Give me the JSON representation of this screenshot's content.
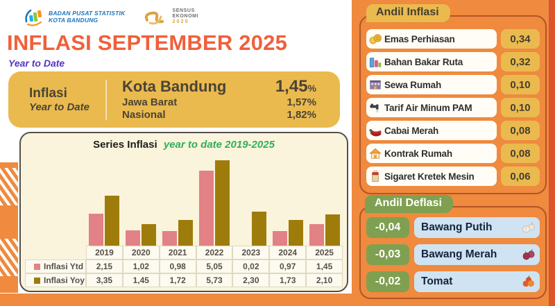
{
  "header": {
    "bps_line1": "BADAN PUSAT STATISTIK",
    "bps_line2": "KOTA BANDUNG",
    "sensus_line1": "SENSUS",
    "sensus_line2": "EKONOMI",
    "sensus_line3": "2025",
    "title": "INFLASI SEPTEMBER 2025",
    "subtitle": "Year to Date"
  },
  "summary_box": {
    "label_line1": "Inflasi",
    "label_line2": "Year to Date",
    "rows": [
      {
        "region": "Kota Bandung",
        "value": "1,45",
        "unit": "%"
      },
      {
        "region": "Jawa Barat",
        "value": "1,57",
        "unit": "%"
      },
      {
        "region": "Nasional",
        "value": "1,82",
        "unit": "%"
      }
    ]
  },
  "chart": {
    "title_main": "Series Inflasi",
    "title_accent": "year to date 2019-2025"
  },
  "chart_data": {
    "type": "bar",
    "title": "Series Inflasi year to date 2019-2025",
    "categories": [
      "2019",
      "2020",
      "2021",
      "2022",
      "2023",
      "2024",
      "2025"
    ],
    "series": [
      {
        "name": "Inflasi Ytd",
        "color": "#E28186",
        "values": [
          2.15,
          1.02,
          0.98,
          5.05,
          0.02,
          0.97,
          1.45
        ],
        "labels": [
          "2,15",
          "1,02",
          "0,98",
          "5,05",
          "0,02",
          "0,97",
          "1,45"
        ]
      },
      {
        "name": "Inflasi Yoy",
        "color": "#9E7C0C",
        "values": [
          3.35,
          1.45,
          1.72,
          5.73,
          2.3,
          1.73,
          2.1
        ],
        "labels": [
          "3,35",
          "1,45",
          "1,72",
          "5,73",
          "2,30",
          "1,73",
          "2,10"
        ]
      }
    ],
    "xlabel": "",
    "ylabel": "",
    "ylim": [
      0,
      6
    ],
    "grid": false,
    "legend_position": "table-left"
  },
  "andil_inflasi": {
    "heading": "Andil Inflasi",
    "items": [
      {
        "label": "Emas Perhiasan",
        "value": "0,34",
        "icon": "gold-jewelry-icon"
      },
      {
        "label": "Bahan Bakar Ruta",
        "value": "0,32",
        "icon": "fuel-icon"
      },
      {
        "label": "Sewa Rumah",
        "value": "0,10",
        "icon": "rental-house-icon"
      },
      {
        "label": "Tarif Air Minum PAM",
        "value": "0,10",
        "icon": "water-tap-icon"
      },
      {
        "label": "Cabai Merah",
        "value": "0,08",
        "icon": "red-chili-icon"
      },
      {
        "label": "Kontrak Rumah",
        "value": "0,08",
        "icon": "house-icon"
      },
      {
        "label": "Sigaret Kretek Mesin",
        "value": "0,06",
        "icon": "cigarette-icon"
      }
    ]
  },
  "andil_deflasi": {
    "heading": "Andil Deflasi",
    "items": [
      {
        "label": "Bawang Putih",
        "value": "-0,04",
        "icon": "garlic-icon"
      },
      {
        "label": "Bawang Merah",
        "value": "-0,03",
        "icon": "shallot-icon"
      },
      {
        "label": "Tomat",
        "value": "-0,02",
        "icon": "tomato-icon"
      }
    ]
  },
  "colors": {
    "background_orange": "#EF8A3E",
    "edge_dark_orange": "#DB542C",
    "gold": "#EABA4E",
    "card_cream": "#FBF4DC",
    "bar_pink": "#E28186",
    "bar_olive": "#9E7C0C",
    "title_orange": "#F0603B",
    "subtitle_purple": "#5633BF",
    "accent_green_text": "#2FAE5D",
    "deflasi_green": "#7FA050",
    "deflasi_blue": "#CFE3F2",
    "bps_blue": "#1B75BC"
  }
}
